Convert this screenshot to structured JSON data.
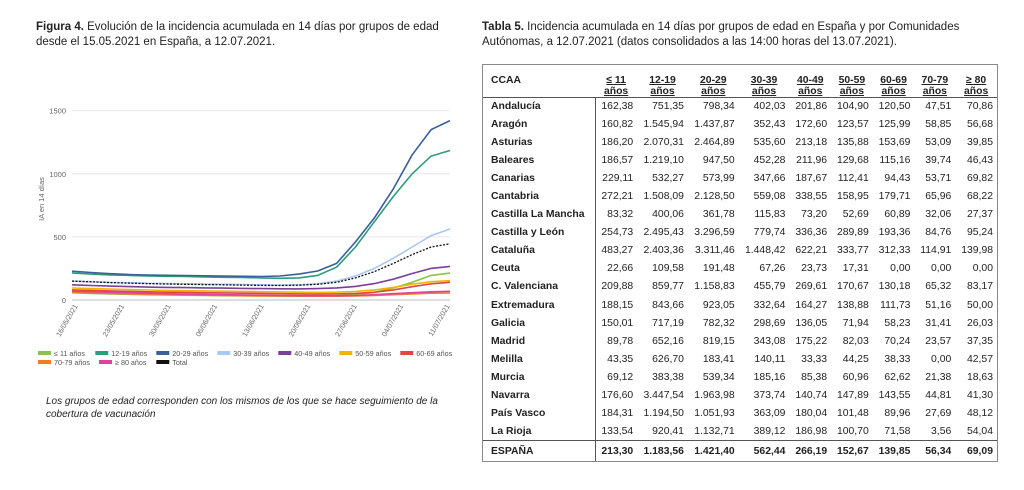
{
  "figure": {
    "label": "Figura 4.",
    "caption": " Evolución de la incidencia acumulada en 14 días por grupos de edad desde el 15.05.2021 en España, a 12.07.2021.",
    "note": "Los grupos de edad corresponden con los mismos de los que se hace seguimiento de la cobertura de vacunación"
  },
  "chart_data": {
    "type": "line",
    "xlabel": "",
    "ylabel": "IA en 14 días",
    "ylim": [
      0,
      1600
    ],
    "yticks": [
      0,
      500,
      1000,
      1500
    ],
    "xticks": [
      "16/05/2021",
      "23/05/2021",
      "30/05/2021",
      "06/06/2021",
      "13/06/2021",
      "20/06/2021",
      "27/06/2021",
      "04/07/2021",
      "11/07/2021"
    ],
    "x": [
      "15/05",
      "18/05",
      "21/05",
      "24/05",
      "27/05",
      "30/05",
      "02/06",
      "05/06",
      "08/06",
      "11/06",
      "14/06",
      "17/06",
      "20/06",
      "23/06",
      "26/06",
      "29/06",
      "02/07",
      "05/07",
      "08/07",
      "11/07",
      "12/07"
    ],
    "legend_position": "bottom",
    "series": [
      {
        "name": "≤ 11 años",
        "color": "#8bc34a",
        "values": [
          58,
          52,
          48,
          45,
          42,
          40,
          38,
          36,
          34,
          33,
          32,
          31,
          30,
          31,
          34,
          42,
          60,
          95,
          140,
          195,
          213
        ]
      },
      {
        "name": "12-19 años",
        "color": "#2e9c7a",
        "values": [
          215,
          205,
          198,
          195,
          190,
          188,
          186,
          183,
          180,
          178,
          175,
          172,
          175,
          195,
          260,
          420,
          620,
          820,
          1000,
          1140,
          1184
        ]
      },
      {
        "name": "20-29 años",
        "color": "#3a5f9c",
        "values": [
          228,
          218,
          208,
          202,
          198,
          196,
          194,
          192,
          190,
          188,
          186,
          190,
          205,
          230,
          290,
          460,
          650,
          880,
          1150,
          1350,
          1421
        ]
      },
      {
        "name": "30-39 años",
        "color": "#a8c8f0",
        "values": [
          150,
          145,
          140,
          136,
          132,
          130,
          128,
          126,
          124,
          122,
          120,
          118,
          120,
          128,
          150,
          190,
          250,
          330,
          420,
          510,
          562
        ]
      },
      {
        "name": "40-49 años",
        "color": "#7b3f99",
        "values": [
          120,
          115,
          110,
          106,
          102,
          100,
          98,
          96,
          94,
          92,
          90,
          89,
          88,
          90,
          96,
          108,
          130,
          165,
          210,
          250,
          266
        ]
      },
      {
        "name": "50-59 años",
        "color": "#f0b400",
        "values": [
          95,
          90,
          86,
          82,
          79,
          76,
          74,
          72,
          70,
          68,
          66,
          64,
          62,
          60,
          62,
          68,
          80,
          100,
          125,
          145,
          153
        ]
      },
      {
        "name": "60-69 años",
        "color": "#e04a3a",
        "values": [
          80,
          76,
          72,
          68,
          65,
          62,
          60,
          58,
          56,
          54,
          52,
          50,
          48,
          47,
          48,
          52,
          62,
          80,
          105,
          128,
          140
        ]
      },
      {
        "name": "70-79 años",
        "color": "#f07a30",
        "values": [
          60,
          56,
          52,
          48,
          45,
          42,
          40,
          38,
          36,
          34,
          33,
          32,
          31,
          30,
          30,
          32,
          36,
          42,
          48,
          54,
          56
        ]
      },
      {
        "name": "≥ 80 años",
        "color": "#e040a0",
        "values": [
          70,
          66,
          62,
          58,
          54,
          50,
          47,
          44,
          42,
          40,
          38,
          36,
          35,
          34,
          34,
          36,
          42,
          50,
          58,
          65,
          69
        ]
      },
      {
        "name": "Total",
        "color": "#111111",
        "dashed": true,
        "values": [
          150,
          144,
          138,
          134,
          130,
          127,
          124,
          122,
          120,
          118,
          116,
          115,
          117,
          124,
          140,
          175,
          225,
          290,
          360,
          420,
          445
        ]
      }
    ]
  },
  "table": {
    "label": "Tabla 5.",
    "caption": " Incidencia acumulada en 14 días por grupos de edad en España y por Comunidades Autónomas, a 12.07.2021 (datos consolidados a las 14:00 horas del 13.07.2021).",
    "header_ccaa": "CCAA",
    "headers": [
      {
        "top": "≤ 11",
        "bottom": "años"
      },
      {
        "top": "12-19",
        "bottom": "años"
      },
      {
        "top": "20-29",
        "bottom": "años"
      },
      {
        "top": "30-39",
        "bottom": "años"
      },
      {
        "top": "40-49",
        "bottom": "años"
      },
      {
        "top": "50-59",
        "bottom": "años"
      },
      {
        "top": "60-69",
        "bottom": "años"
      },
      {
        "top": "70-79",
        "bottom": "años"
      },
      {
        "top": "≥ 80",
        "bottom": "años"
      }
    ],
    "rows": [
      {
        "name": "Andalucía",
        "values": [
          "162,38",
          "751,35",
          "798,34",
          "402,03",
          "201,86",
          "104,90",
          "120,50",
          "47,51",
          "70,86"
        ]
      },
      {
        "name": "Aragón",
        "values": [
          "160,82",
          "1.545,94",
          "1.437,87",
          "352,43",
          "172,60",
          "123,57",
          "125,99",
          "58,85",
          "56,68"
        ]
      },
      {
        "name": "Asturias",
        "values": [
          "186,20",
          "2.070,31",
          "2.464,89",
          "535,60",
          "213,18",
          "135,88",
          "153,69",
          "53,09",
          "39,85"
        ]
      },
      {
        "name": "Baleares",
        "values": [
          "186,57",
          "1.219,10",
          "947,50",
          "452,28",
          "211,96",
          "129,68",
          "115,16",
          "39,74",
          "46,43"
        ]
      },
      {
        "name": "Canarias",
        "values": [
          "229,11",
          "532,27",
          "573,99",
          "347,66",
          "187,67",
          "112,41",
          "94,43",
          "53,71",
          "69,82"
        ]
      },
      {
        "name": "Cantabria",
        "values": [
          "272,21",
          "1.508,09",
          "2.128,50",
          "559,08",
          "338,55",
          "158,95",
          "179,71",
          "65,96",
          "68,22"
        ]
      },
      {
        "name": "Castilla La Mancha",
        "values": [
          "83,32",
          "400,06",
          "361,78",
          "115,83",
          "73,20",
          "52,69",
          "60,89",
          "32,06",
          "27,37"
        ]
      },
      {
        "name": "Castilla y León",
        "values": [
          "254,73",
          "2.495,43",
          "3.296,59",
          "779,74",
          "336,36",
          "289,89",
          "193,36",
          "84,76",
          "95,24"
        ]
      },
      {
        "name": "Cataluña",
        "values": [
          "483,27",
          "2.403,36",
          "3.311,46",
          "1.448,42",
          "622,21",
          "333,77",
          "312,33",
          "114,91",
          "139,98"
        ]
      },
      {
        "name": "Ceuta",
        "values": [
          "22,66",
          "109,58",
          "191,48",
          "67,26",
          "23,73",
          "17,31",
          "0,00",
          "0,00",
          "0,00"
        ]
      },
      {
        "name": "C. Valenciana",
        "values": [
          "209,88",
          "859,77",
          "1.158,83",
          "455,79",
          "269,61",
          "170,67",
          "130,18",
          "65,32",
          "83,17"
        ]
      },
      {
        "name": "Extremadura",
        "values": [
          "188,15",
          "843,66",
          "923,05",
          "332,64",
          "164,27",
          "138,88",
          "111,73",
          "51,16",
          "50,00"
        ]
      },
      {
        "name": "Galicia",
        "values": [
          "150,01",
          "717,19",
          "782,32",
          "298,69",
          "136,05",
          "71,94",
          "58,23",
          "31,41",
          "26,03"
        ]
      },
      {
        "name": "Madrid",
        "values": [
          "89,78",
          "652,16",
          "819,15",
          "343,08",
          "175,22",
          "82,03",
          "70,24",
          "23,57",
          "37,35"
        ]
      },
      {
        "name": "Melilla",
        "values": [
          "43,35",
          "626,70",
          "183,41",
          "140,11",
          "33,33",
          "44,25",
          "38,33",
          "0,00",
          "42,57"
        ]
      },
      {
        "name": "Murcia",
        "values": [
          "69,12",
          "383,38",
          "539,34",
          "185,16",
          "85,38",
          "60,96",
          "62,62",
          "21,38",
          "18,63"
        ]
      },
      {
        "name": "Navarra",
        "values": [
          "176,60",
          "3.447,54",
          "1.963,98",
          "373,74",
          "140,74",
          "147,89",
          "143,55",
          "44,81",
          "41,30"
        ]
      },
      {
        "name": "País Vasco",
        "values": [
          "184,31",
          "1.194,50",
          "1.051,93",
          "363,09",
          "180,04",
          "101,48",
          "89,96",
          "27,69",
          "48,12"
        ]
      },
      {
        "name": "La Rioja",
        "values": [
          "133,54",
          "920,41",
          "1.132,71",
          "389,12",
          "186,98",
          "100,70",
          "71,58",
          "3,56",
          "54,04"
        ]
      }
    ],
    "total": {
      "name": "ESPAÑA",
      "values": [
        "213,30",
        "1.183,56",
        "1.421,40",
        "562,44",
        "266,19",
        "152,67",
        "139,85",
        "56,34",
        "69,09"
      ]
    }
  }
}
